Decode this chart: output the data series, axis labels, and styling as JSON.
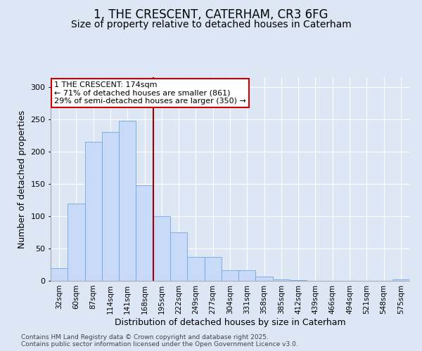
{
  "title": "1, THE CRESCENT, CATERHAM, CR3 6FG",
  "subtitle": "Size of property relative to detached houses in Caterham",
  "xlabel": "Distribution of detached houses by size in Caterham",
  "ylabel": "Number of detached properties",
  "bins": [
    "32sqm",
    "60sqm",
    "87sqm",
    "114sqm",
    "141sqm",
    "168sqm",
    "195sqm",
    "222sqm",
    "249sqm",
    "277sqm",
    "304sqm",
    "331sqm",
    "358sqm",
    "385sqm",
    "412sqm",
    "439sqm",
    "466sqm",
    "494sqm",
    "521sqm",
    "548sqm",
    "575sqm"
  ],
  "values": [
    20,
    120,
    215,
    230,
    248,
    148,
    100,
    75,
    37,
    37,
    16,
    16,
    7,
    2,
    1,
    0,
    0,
    0,
    0,
    0,
    2
  ],
  "bar_color": "#c9daf8",
  "bar_edge_color": "#6fa8dc",
  "property_line_x": 5.5,
  "property_line_color": "#990000",
  "annotation_text": "1 THE CRESCENT: 174sqm\n← 71% of detached houses are smaller (861)\n29% of semi-detached houses are larger (350) →",
  "annotation_box_facecolor": "#ffffff",
  "annotation_box_edgecolor": "#cc0000",
  "ylim": [
    0,
    315
  ],
  "yticks": [
    0,
    50,
    100,
    150,
    200,
    250,
    300
  ],
  "footer_text": "Contains HM Land Registry data © Crown copyright and database right 2025.\nContains public sector information licensed under the Open Government Licence v3.0.",
  "background_color": "#dce6f5",
  "plot_background": "#dce6f5",
  "grid_color": "#ffffff",
  "title_fontsize": 12,
  "subtitle_fontsize": 10,
  "tick_fontsize": 7.5,
  "label_fontsize": 9,
  "footer_fontsize": 6.5,
  "annotation_fontsize": 8
}
